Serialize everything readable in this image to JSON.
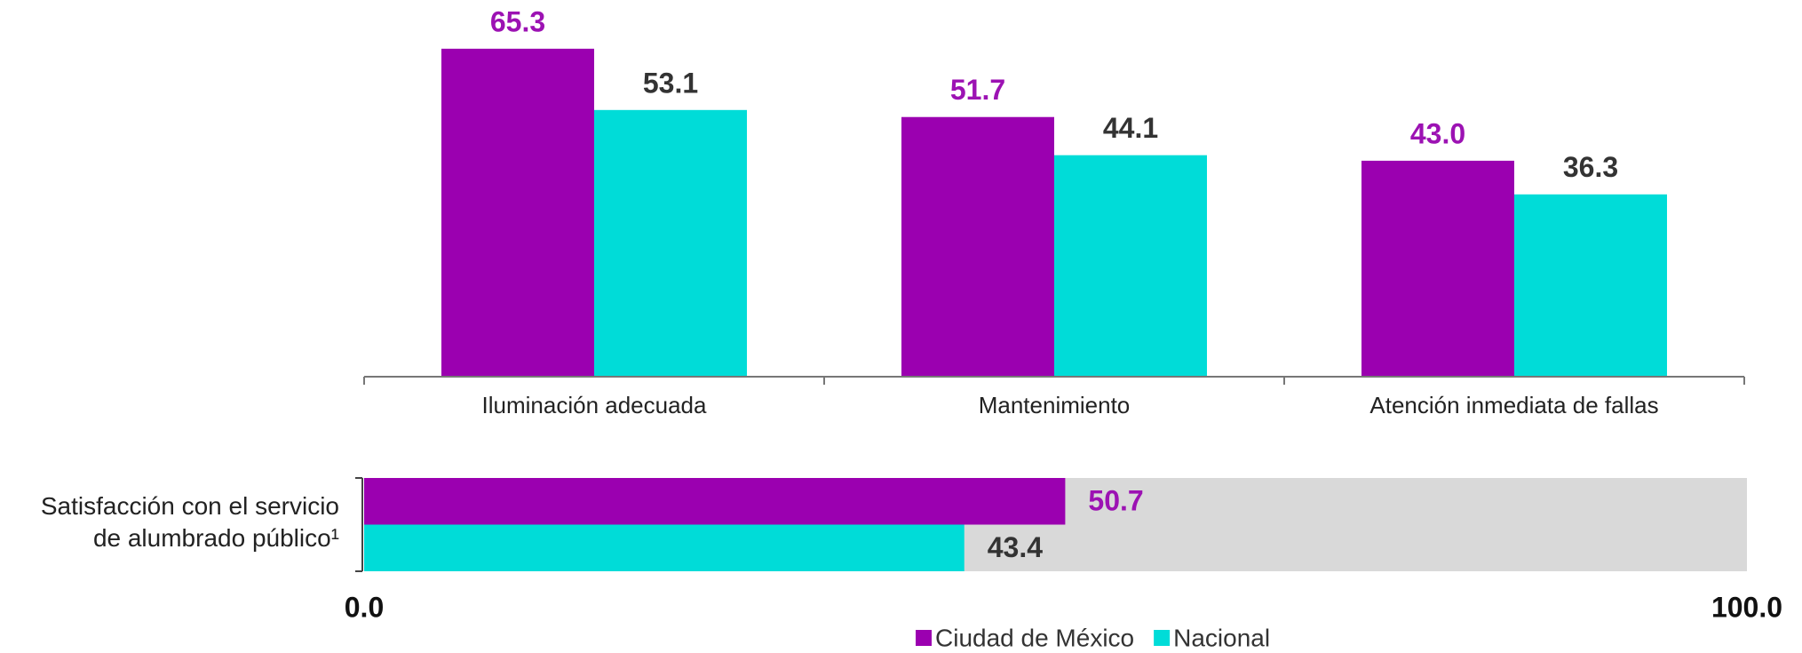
{
  "chart_data": [
    {
      "type": "bar",
      "categories": [
        "Iluminación adecuada",
        "Mantenimiento",
        "Atención inmediata de fallas"
      ],
      "series": [
        {
          "name": "Ciudad de México",
          "color": "#9b00b0",
          "values": [
            65.3,
            51.7,
            43.0
          ],
          "value_labels": [
            "65.3",
            "51.7",
            "43.0"
          ]
        },
        {
          "name": "Nacional",
          "color": "#00dcd8",
          "values": [
            53.1,
            44.1,
            36.3
          ],
          "value_labels": [
            "53.1",
            "44.1",
            "36.3"
          ]
        }
      ],
      "ylim": [
        0,
        75
      ]
    },
    {
      "type": "hbar",
      "categories": [
        "Satisfacción con el servicio de alumbrado público¹"
      ],
      "series": [
        {
          "name": "Ciudad de México",
          "color": "#9b00b0",
          "values": [
            50.7
          ],
          "value_labels": [
            "50.7"
          ]
        },
        {
          "name": "Nacional",
          "color": "#00dcd8",
          "values": [
            43.4
          ],
          "value_labels": [
            "43.4"
          ]
        }
      ],
      "xlim": [
        0,
        100
      ],
      "xticks": [
        {
          "value": 0,
          "label": "0.0"
        },
        {
          "value": 100,
          "label": "100.0"
        }
      ]
    }
  ]
}
